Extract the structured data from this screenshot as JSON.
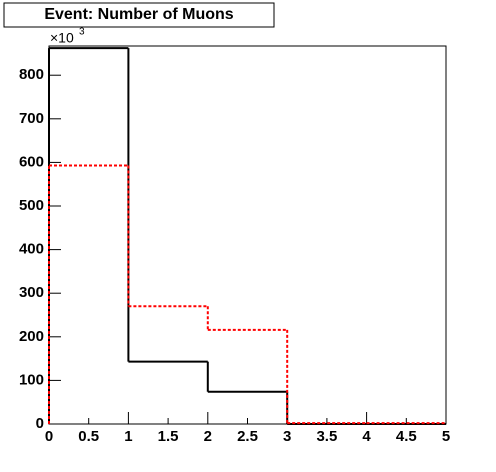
{
  "chart_data": {
    "type": "histogram",
    "title": "Event: Number of Muons",
    "axis_multiplier": {
      "base": "×10",
      "exponent": "3"
    },
    "bins": [
      0,
      1,
      2,
      3,
      4,
      5
    ],
    "series": [
      {
        "color": "#000000",
        "line_style": "solid",
        "values": [
          862,
          143,
          74,
          0,
          0
        ]
      },
      {
        "color": "#ff0000",
        "line_style": "dashed",
        "values": [
          593,
          270,
          216,
          2,
          2
        ]
      }
    ],
    "xlim": [
      0,
      5
    ],
    "xticks": [
      0,
      0.5,
      1,
      1.5,
      2,
      2.5,
      3,
      3.5,
      4,
      4.5,
      5
    ],
    "ylim": [
      0,
      867
    ],
    "yticks": [
      0,
      100,
      200,
      300,
      400,
      500,
      600,
      700,
      800
    ]
  }
}
